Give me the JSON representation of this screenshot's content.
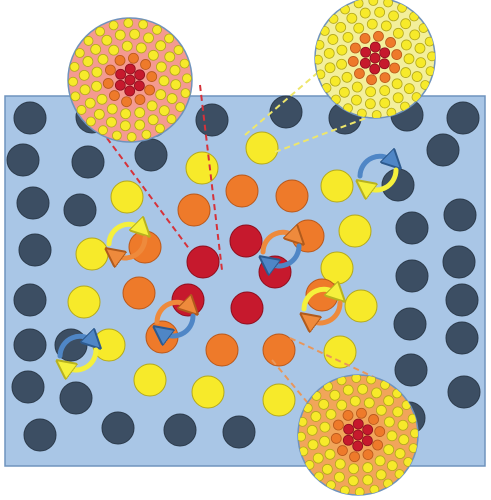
{
  "diagram": {
    "labels": [],
    "colors": {
      "background": "#ffffff",
      "panel": "#a9c6e6",
      "panel_border": "#6f93bd",
      "dark_particle": "#3c4e63",
      "yellow_particle": "#f7ea2a",
      "orange_particle": "#ee7a2a",
      "red_particle": "#c6192d",
      "inset_top_left": "#f49a90",
      "inset_top_right": "#f3ef9b",
      "inset_bottom_right": "#f1a55a",
      "arrow_yellow": "#f5f03c",
      "arrow_orange": "#ee8a3c",
      "arrow_blue": "#4f86c6",
      "dash_red": "#d6323a",
      "dash_yellow": "#eee66b",
      "dash_orange": "#e8975c"
    },
    "regions": [
      {
        "name": "red-core",
        "color": "red"
      },
      {
        "name": "orange-ring",
        "color": "orange"
      },
      {
        "name": "yellow-ring",
        "color": "yellow"
      },
      {
        "name": "dark-outer",
        "color": "dark"
      }
    ],
    "insets": [
      {
        "name": "inset-red-core",
        "zoom_of": "red-core",
        "fill_key": "inset_top_left",
        "line_key": "dash_red"
      },
      {
        "name": "inset-yellow-ring",
        "zoom_of": "yellow-ring",
        "fill_key": "inset_top_right",
        "line_key": "dash_yellow"
      },
      {
        "name": "inset-orange-ring",
        "zoom_of": "orange-ring",
        "fill_key": "inset_bottom_right",
        "line_key": "dash_orange"
      }
    ],
    "rotation_arrows": 7
  }
}
